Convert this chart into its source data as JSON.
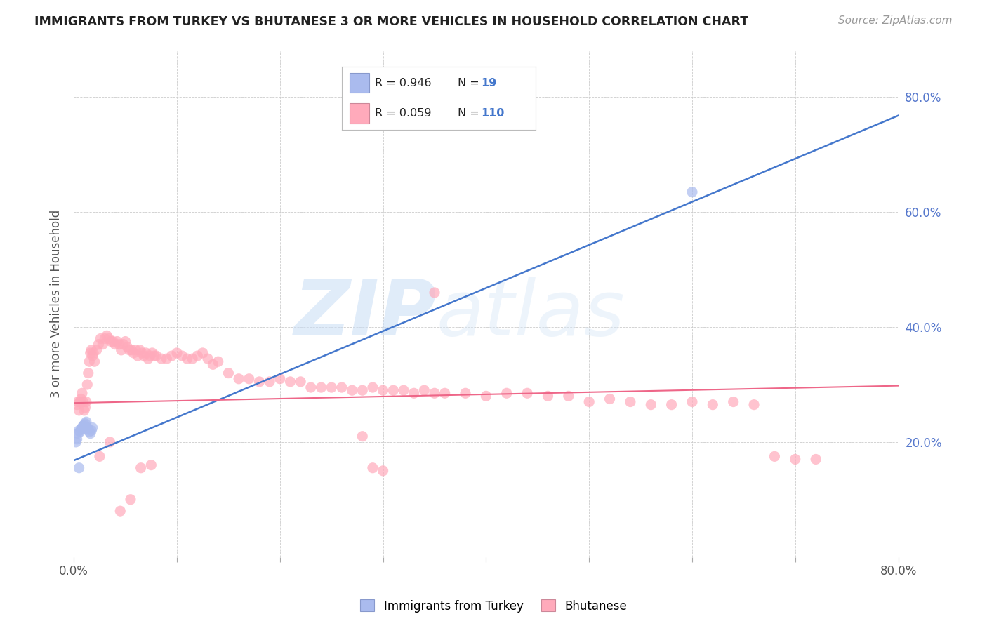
{
  "title": "IMMIGRANTS FROM TURKEY VS BHUTANESE 3 OR MORE VEHICLES IN HOUSEHOLD CORRELATION CHART",
  "source": "Source: ZipAtlas.com",
  "ylabel": "3 or more Vehicles in Household",
  "watermark_zip": "ZIP",
  "watermark_atlas": "atlas",
  "xlim": [
    0.0,
    0.8
  ],
  "ylim": [
    0.0,
    0.88
  ],
  "yticks_right": [
    0.2,
    0.4,
    0.6,
    0.8
  ],
  "ytick_right_labels": [
    "20.0%",
    "40.0%",
    "60.0%",
    "80.0%"
  ],
  "blue_R": "0.946",
  "blue_N": "19",
  "pink_R": "0.059",
  "pink_N": "110",
  "blue_scatter_color": "#aabbee",
  "pink_scatter_color": "#ffaabb",
  "blue_line_color": "#4477cc",
  "pink_line_color": "#ee6688",
  "blue_line": [
    [
      0.0,
      0.168
    ],
    [
      0.8,
      0.768
    ]
  ],
  "pink_line": [
    [
      0.0,
      0.268
    ],
    [
      0.8,
      0.298
    ]
  ],
  "blue_scatter_x": [
    0.002,
    0.003,
    0.004,
    0.005,
    0.006,
    0.007,
    0.008,
    0.009,
    0.01,
    0.011,
    0.012,
    0.013,
    0.014,
    0.015,
    0.016,
    0.017,
    0.018,
    0.6,
    0.005
  ],
  "blue_scatter_y": [
    0.2,
    0.205,
    0.215,
    0.22,
    0.218,
    0.222,
    0.225,
    0.228,
    0.23,
    0.232,
    0.235,
    0.225,
    0.222,
    0.218,
    0.215,
    0.22,
    0.225,
    0.635,
    0.155
  ],
  "pink_scatter_x": [
    0.003,
    0.004,
    0.005,
    0.006,
    0.007,
    0.008,
    0.009,
    0.01,
    0.011,
    0.012,
    0.013,
    0.014,
    0.015,
    0.016,
    0.017,
    0.018,
    0.019,
    0.02,
    0.022,
    0.024,
    0.026,
    0.028,
    0.03,
    0.032,
    0.034,
    0.036,
    0.038,
    0.04,
    0.042,
    0.044,
    0.046,
    0.048,
    0.05,
    0.052,
    0.054,
    0.056,
    0.058,
    0.06,
    0.062,
    0.064,
    0.066,
    0.068,
    0.07,
    0.072,
    0.074,
    0.076,
    0.078,
    0.08,
    0.085,
    0.09,
    0.095,
    0.1,
    0.105,
    0.11,
    0.115,
    0.12,
    0.125,
    0.13,
    0.135,
    0.14,
    0.15,
    0.16,
    0.17,
    0.18,
    0.19,
    0.2,
    0.21,
    0.22,
    0.23,
    0.24,
    0.25,
    0.26,
    0.27,
    0.28,
    0.29,
    0.3,
    0.31,
    0.32,
    0.33,
    0.34,
    0.35,
    0.36,
    0.38,
    0.4,
    0.42,
    0.44,
    0.46,
    0.48,
    0.5,
    0.52,
    0.54,
    0.56,
    0.58,
    0.6,
    0.62,
    0.64,
    0.66,
    0.68,
    0.7,
    0.72,
    0.35,
    0.28,
    0.29,
    0.3,
    0.025,
    0.035,
    0.045,
    0.055,
    0.065,
    0.075
  ],
  "pink_scatter_y": [
    0.265,
    0.27,
    0.255,
    0.27,
    0.275,
    0.285,
    0.27,
    0.255,
    0.26,
    0.27,
    0.3,
    0.32,
    0.34,
    0.355,
    0.36,
    0.35,
    0.355,
    0.34,
    0.36,
    0.37,
    0.38,
    0.37,
    0.38,
    0.385,
    0.38,
    0.375,
    0.375,
    0.37,
    0.375,
    0.37,
    0.36,
    0.37,
    0.375,
    0.365,
    0.36,
    0.36,
    0.355,
    0.36,
    0.35,
    0.36,
    0.355,
    0.35,
    0.355,
    0.345,
    0.35,
    0.355,
    0.35,
    0.35,
    0.345,
    0.345,
    0.35,
    0.355,
    0.35,
    0.345,
    0.345,
    0.35,
    0.355,
    0.345,
    0.335,
    0.34,
    0.32,
    0.31,
    0.31,
    0.305,
    0.305,
    0.31,
    0.305,
    0.305,
    0.295,
    0.295,
    0.295,
    0.295,
    0.29,
    0.29,
    0.295,
    0.29,
    0.29,
    0.29,
    0.285,
    0.29,
    0.285,
    0.285,
    0.285,
    0.28,
    0.285,
    0.285,
    0.28,
    0.28,
    0.27,
    0.275,
    0.27,
    0.265,
    0.265,
    0.27,
    0.265,
    0.27,
    0.265,
    0.175,
    0.17,
    0.17,
    0.46,
    0.21,
    0.155,
    0.15,
    0.175,
    0.2,
    0.08,
    0.1,
    0.155,
    0.16
  ]
}
